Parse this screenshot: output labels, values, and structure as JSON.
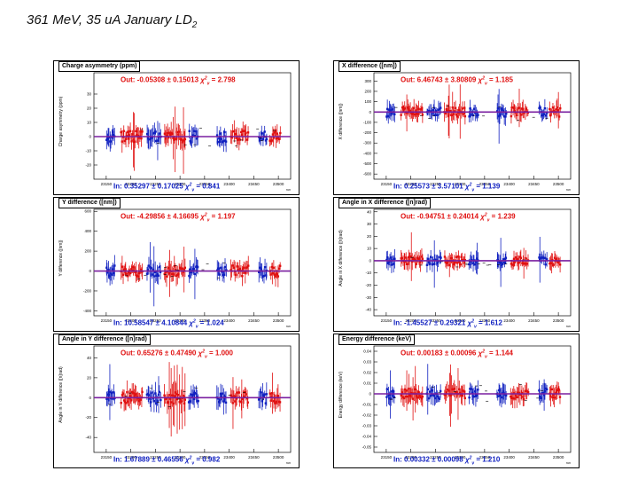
{
  "slide": {
    "title_main": "361 MeV, 35 uA January LD",
    "title_sub": "2"
  },
  "colors": {
    "out": "#e01010",
    "in": "#1020c0",
    "mean_line": "#7a1fa0"
  },
  "chart_data": [
    {
      "type": "scatter",
      "title": "Charge asymmetry (ppm)",
      "ylabel": "Charge asymmetry (ppm)",
      "ylim": [
        -30,
        45
      ],
      "yticks": [
        "30",
        "20",
        "10",
        "0",
        "-10",
        "-20"
      ],
      "ytick_values": [
        30,
        20,
        10,
        0,
        -10,
        -20
      ],
      "xticks": [
        "23150",
        "23200",
        "23250",
        "23300",
        "23350",
        "23400",
        "23450",
        "23500"
      ],
      "xlim": [
        23125,
        23525
      ],
      "x_axis_label": "run",
      "mean_line": 0,
      "out_fit": {
        "label": "Out:",
        "value": "-0.05308",
        "error": "0.15013",
        "chi2": "2.798"
      },
      "in_fit": {
        "label": "In:",
        "value": "0.35297",
        "error": "0.17025",
        "chi2": "0.841"
      },
      "scale": 8
    },
    {
      "type": "scatter",
      "title": "X difference ([nm])",
      "ylabel": "X difference ([nm])",
      "ylim": [
        -650,
        380
      ],
      "yticks": [
        "300",
        "200",
        "100",
        "0",
        "-100",
        "-200",
        "-300",
        "-400",
        "-500",
        "-600"
      ],
      "ytick_values": [
        300,
        200,
        100,
        0,
        -100,
        -200,
        -300,
        -400,
        -500,
        -600
      ],
      "xticks": [
        "23150",
        "23200",
        "23250",
        "23300",
        "23350",
        "23400",
        "23450",
        "23500"
      ],
      "xlim": [
        23125,
        23525
      ],
      "x_axis_label": "run",
      "mean_line": 0,
      "out_fit": {
        "label": "Out:",
        "value": "6.46743",
        "error": "3.80809",
        "chi2": "1.185"
      },
      "in_fit": {
        "label": "In:",
        "value": "0.25573",
        "error": "3.57101",
        "chi2": "1.139"
      },
      "scale": 90
    },
    {
      "type": "scatter",
      "title": "Y difference ([nm])",
      "ylabel": "Y difference ([nm])",
      "ylim": [
        -450,
        620
      ],
      "yticks": [
        "600",
        "400",
        "200",
        "0",
        "-200",
        "-400"
      ],
      "ytick_values": [
        600,
        400,
        200,
        0,
        -200,
        -400
      ],
      "xticks": [
        "23150",
        "23200",
        "23250",
        "23300",
        "23350",
        "23400",
        "23450",
        "23500"
      ],
      "xlim": [
        23125,
        23525
      ],
      "x_axis_label": "run",
      "mean_line": 0,
      "out_fit": {
        "label": "Out:",
        "value": "-4.29856",
        "error": "4.16695",
        "chi2": "1.197"
      },
      "in_fit": {
        "label": "In:",
        "value": "10.58547",
        "error": "4.10844",
        "chi2": "1.024"
      },
      "scale": 110
    },
    {
      "type": "scatter",
      "title": "Angle in X difference ([n]rad)",
      "ylabel": "Angle in X difference ([n]rad)",
      "ylim": [
        -45,
        42
      ],
      "yticks": [
        "40",
        "30",
        "20",
        "10",
        "0",
        "-10",
        "-20",
        "-30",
        "-40"
      ],
      "ytick_values": [
        40,
        30,
        20,
        10,
        0,
        -10,
        -20,
        -30,
        -40
      ],
      "xticks": [
        "23150",
        "23200",
        "23250",
        "23300",
        "23350",
        "23400",
        "23450",
        "23500"
      ],
      "xlim": [
        23125,
        23525
      ],
      "x_axis_label": "run",
      "mean_line": 0,
      "out_fit": {
        "label": "Out:",
        "value": "-0.94751",
        "error": "0.24014",
        "chi2": "1.239"
      },
      "in_fit": {
        "label": "In:",
        "value": "-1.45527",
        "error": "0.29321",
        "chi2": "1.612"
      },
      "scale": 7
    },
    {
      "type": "scatter",
      "title": "Angle in Y difference ([n]rad)",
      "ylabel": "Angle in Y difference ([n]rad)",
      "ylim": [
        -55,
        52
      ],
      "yticks": [
        "40",
        "20",
        "0",
        "-20",
        "-40"
      ],
      "ytick_values": [
        40,
        20,
        0,
        -20,
        -40
      ],
      "xticks": [
        "23150",
        "23200",
        "23250",
        "23300",
        "23350",
        "23400",
        "23450",
        "23500"
      ],
      "xlim": [
        23125,
        23525
      ],
      "x_axis_label": "run",
      "mean_line": 0,
      "out_fit": {
        "label": "Out:",
        "value": "0.65276",
        "error": "0.47490",
        "chi2": "1.000"
      },
      "in_fit": {
        "label": "In:",
        "value": "1.67889",
        "error": "0.46556",
        "chi2": "0.982"
      },
      "scale": 12
    },
    {
      "type": "scatter",
      "title": "Energy difference (keV)",
      "ylabel": "Energy difference (keV)",
      "ylim": [
        -0.055,
        0.045
      ],
      "yticks": [
        "0.04",
        "0.03",
        "0.02",
        "0.01",
        "0",
        "-0.01",
        "-0.02",
        "-0.03",
        "-0.04",
        "-0.05"
      ],
      "ytick_values": [
        0.04,
        0.03,
        0.02,
        0.01,
        0,
        -0.01,
        -0.02,
        -0.03,
        -0.04,
        -0.05
      ],
      "xticks": [
        "23150",
        "23200",
        "23250",
        "23300",
        "23350",
        "23400",
        "23450",
        "23500"
      ],
      "xlim": [
        23125,
        23525
      ],
      "x_axis_label": "run",
      "mean_line": 0,
      "out_fit": {
        "label": "Out:",
        "value": "0.00183",
        "error": "0.00096",
        "chi2": "1.144"
      },
      "in_fit": {
        "label": "In:",
        "value": "0.00332",
        "error": "0.00098",
        "chi2": "1.210"
      },
      "scale": 0.01
    }
  ]
}
